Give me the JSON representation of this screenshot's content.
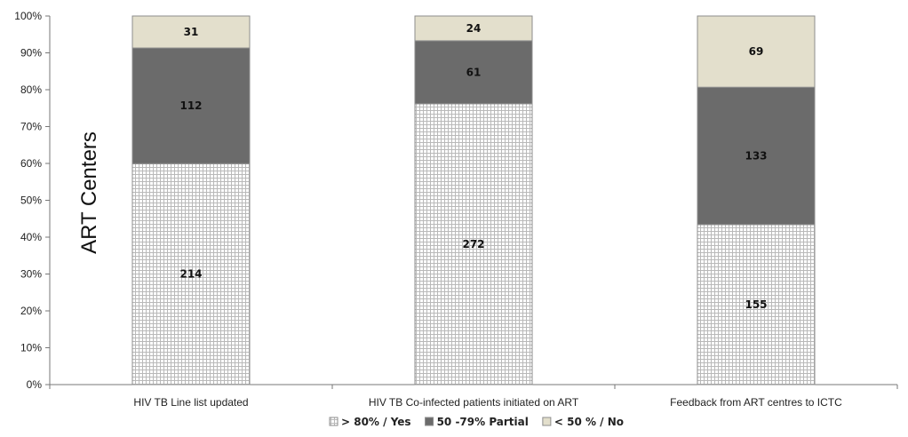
{
  "chart_data": {
    "type": "bar",
    "stacked": true,
    "normalized": true,
    "title": "",
    "xlabel": "",
    "ylabel": "ART Centers",
    "ylim": [
      0,
      100
    ],
    "yticks": [
      "0%",
      "10%",
      "20%",
      "30%",
      "40%",
      "50%",
      "60%",
      "70%",
      "80%",
      "90%",
      "100%"
    ],
    "grid": false,
    "legend_position": "bottom",
    "categories": [
      "HIV TB Line list updated",
      "HIV TB Co-infected patients initiated on ART",
      "Feedback from ART centres to ICTC"
    ],
    "series": [
      {
        "name": "> 80% / Yes",
        "values": [
          214,
          272,
          155
        ],
        "color": "#ffffff",
        "pattern": "grid"
      },
      {
        "name": "50 -79% Partial",
        "values": [
          112,
          61,
          133
        ],
        "color": "#6b6b6b",
        "pattern": "solid"
      },
      {
        "name": "< 50 % / No",
        "values": [
          31,
          24,
          69
        ],
        "color": "#e3dfcc",
        "pattern": "solid"
      }
    ]
  }
}
